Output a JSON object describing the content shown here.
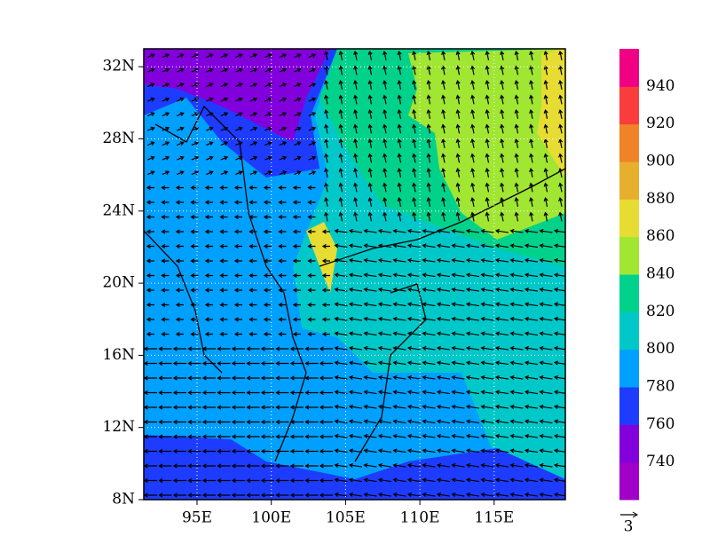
{
  "map": {
    "lon_ticks": [
      "95E",
      "100E",
      "105E",
      "110E",
      "115E"
    ],
    "lat_ticks": [
      "8N",
      "12N",
      "16N",
      "20N",
      "24N",
      "28N",
      "32N"
    ],
    "colorbar": {
      "labels": [
        "740",
        "760",
        "780",
        "800",
        "820",
        "840",
        "860",
        "880",
        "900",
        "920",
        "940"
      ],
      "colors": [
        "#a000c8",
        "#8200dc",
        "#1e3cff",
        "#00a0ff",
        "#00c8c8",
        "#00d28c",
        "#a0e632",
        "#e6dc32",
        "#e6af2d",
        "#f08228",
        "#fa3c3c",
        "#f00082"
      ]
    },
    "vector_reference": "3"
  }
}
